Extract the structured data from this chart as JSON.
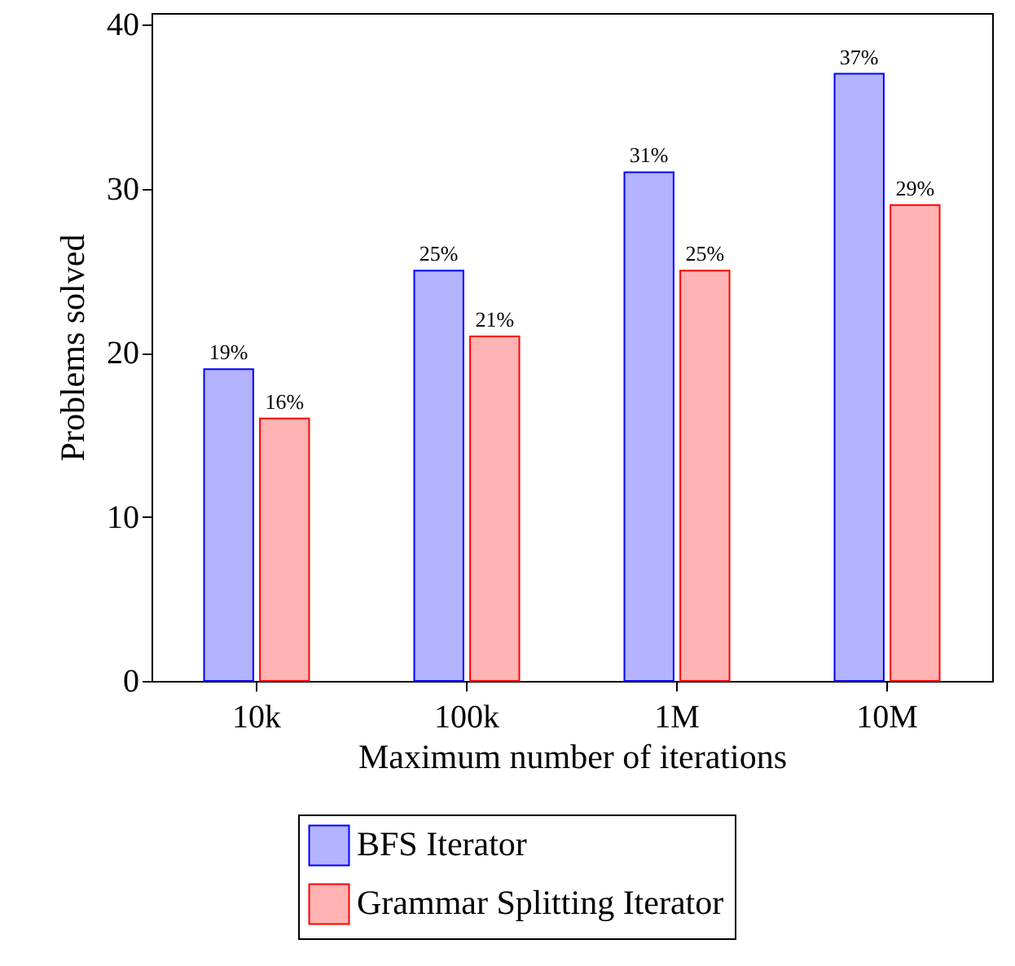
{
  "chart_data": {
    "type": "bar",
    "xlabel": "Maximum number of iterations",
    "ylabel": "Problems solved",
    "categories": [
      "10k",
      "100k",
      "1M",
      "10M"
    ],
    "series": [
      {
        "name": "BFS Iterator",
        "color": "#b3b3ff",
        "values": [
          19,
          25,
          31,
          37
        ],
        "value_labels": [
          "19%",
          "25%",
          "31%",
          "37%"
        ]
      },
      {
        "name": "Grammar Splitting Iterator",
        "color": "#ffb3b3",
        "values": [
          16,
          21,
          25,
          29
        ],
        "value_labels": [
          "16%",
          "21%",
          "25%",
          "29%"
        ]
      }
    ],
    "ylim": [
      0,
      40.7
    ],
    "yticks": [
      0,
      10,
      20,
      30,
      40
    ],
    "grid": false,
    "legend": "bottom"
  }
}
